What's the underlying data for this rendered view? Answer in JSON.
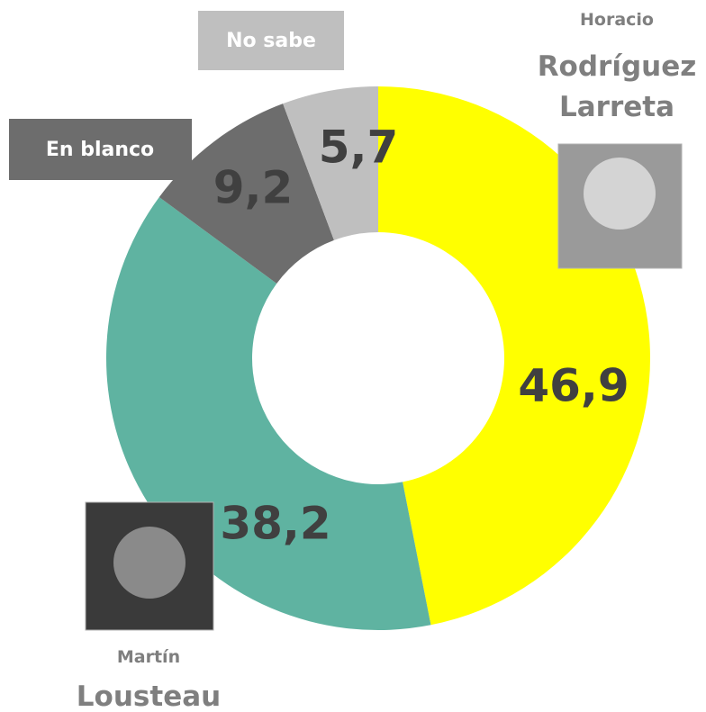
{
  "chart_data": {
    "type": "donut",
    "categories": [
      "Horacio Rodríguez Larreta",
      "Martín Lousteau",
      "En blanco",
      "No sabe"
    ],
    "values": [
      46.9,
      38.2,
      9.2,
      5.7
    ],
    "value_labels": [
      "46,9",
      "38,2",
      "9,2",
      "5,7"
    ],
    "colors": [
      "#ffff00",
      "#5fb3a1",
      "#6d6d6d",
      "#bfbfbf"
    ]
  }
}
